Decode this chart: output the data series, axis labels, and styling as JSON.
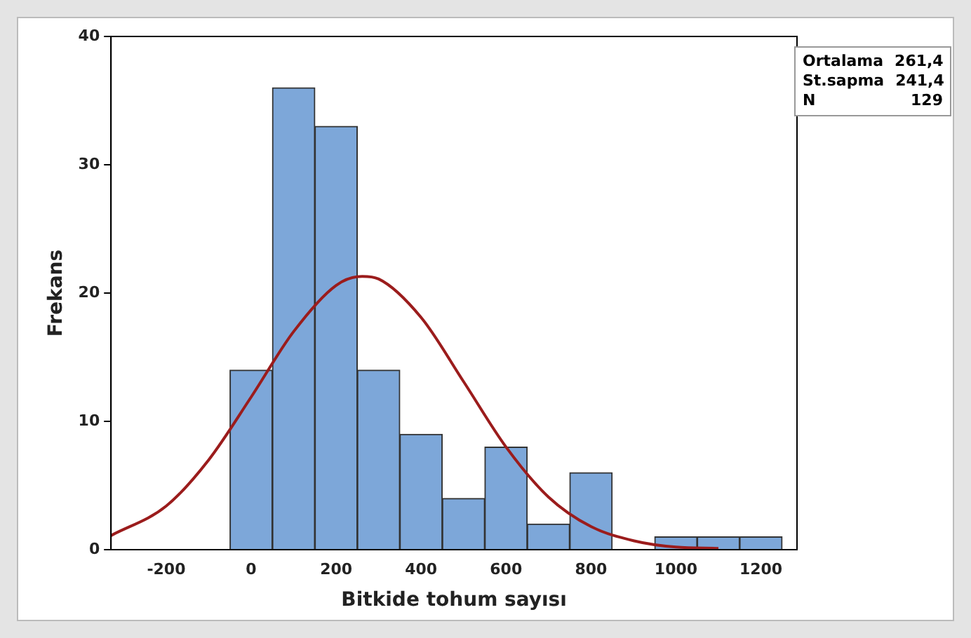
{
  "chart_data": {
    "type": "histogram",
    "xlabel": "Bitkide tohum sayısı",
    "ylabel": "Frekans",
    "bins": [
      -50,
      50,
      150,
      250,
      350,
      450,
      550,
      650,
      750,
      850,
      950,
      1050,
      1150,
      1250
    ],
    "values": [
      14,
      36,
      33,
      14,
      9,
      4,
      8,
      2,
      6,
      0,
      1,
      1,
      1
    ],
    "color": "#7da7d9",
    "series": [
      {
        "type": "line",
        "color": "#9b1c1c",
        "x": [
          -330,
          -200,
          -100,
          0,
          100,
          200,
          261.4,
          300,
          400,
          500,
          600,
          700,
          800,
          900,
          1000,
          1100
        ],
        "values": [
          1.1,
          3.4,
          7.0,
          11.9,
          17.0,
          20.6,
          21.3,
          21.1,
          18.1,
          13.1,
          8.0,
          4.1,
          1.8,
          0.7,
          0.2,
          0.1
        ]
      }
    ],
    "xlim": [
      -330,
      1285
    ],
    "xticks": [
      -200,
      0,
      200,
      400,
      600,
      800,
      1000,
      1200
    ],
    "ylim": [
      0,
      40
    ],
    "yticks": [
      0,
      10,
      20,
      30,
      40
    ],
    "grid": false,
    "legend": false,
    "marker": "none",
    "line_style": "solid",
    "annotations": [
      "Ortalama 261,4",
      "St.sapma 241,4",
      "N 129"
    ]
  }
}
